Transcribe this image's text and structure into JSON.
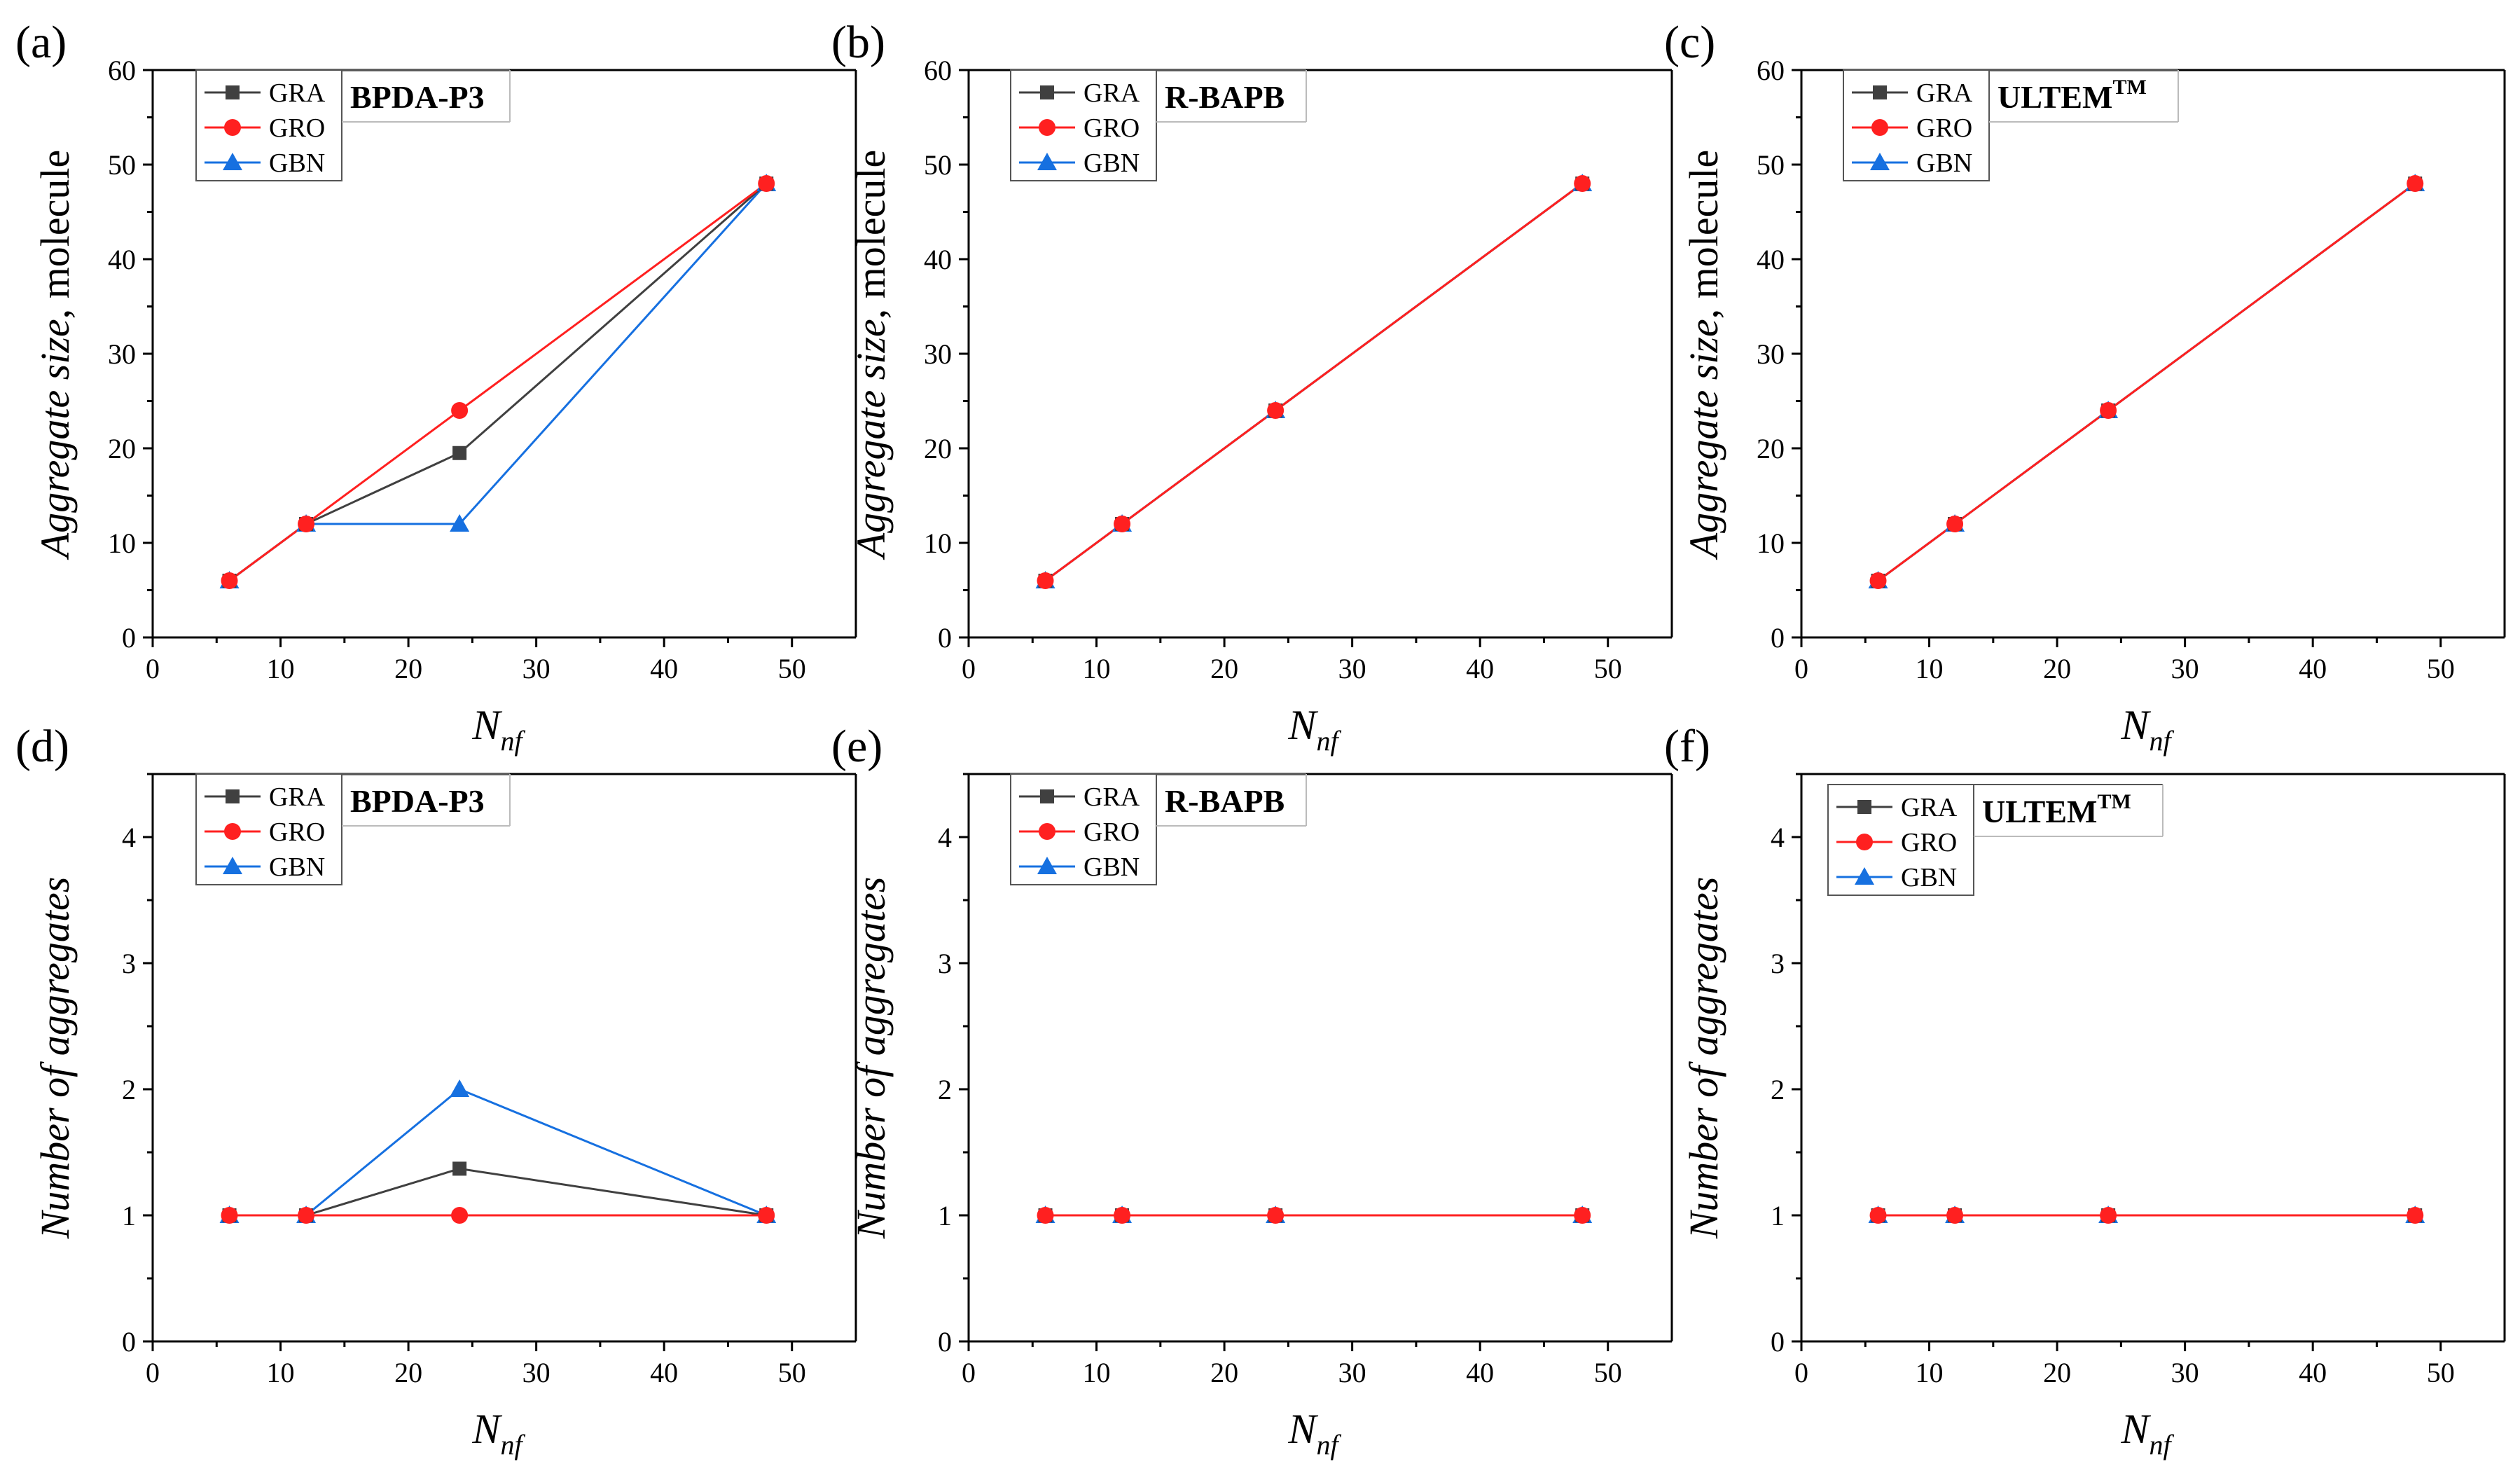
{
  "colors": {
    "GRA": "#404040",
    "GRO": "#ff2020",
    "GBN": "#1670e0"
  },
  "chart_data": [
    {
      "id": "a",
      "panel_label": "(a)",
      "type": "line",
      "sample_label": "BPDA-P3",
      "sample_sup": "",
      "xlabel": "N",
      "xlabel_sub": "nf",
      "ylabel_italic": "Aggregate size",
      "ylabel_rest": ", molecule",
      "xlim": [
        0,
        55
      ],
      "ylim": [
        0,
        60
      ],
      "xticks": [
        "0",
        "10",
        "20",
        "30",
        "40",
        "50"
      ],
      "yticks": [
        "0",
        "10",
        "20",
        "30",
        "40",
        "50",
        "60"
      ],
      "x": [
        6,
        12,
        24,
        48
      ],
      "series": [
        {
          "name": "GRA",
          "values": [
            6,
            12,
            19.5,
            48
          ]
        },
        {
          "name": "GRO",
          "values": [
            6,
            12,
            24,
            48
          ]
        },
        {
          "name": "GBN",
          "values": [
            6,
            12,
            12,
            48
          ]
        }
      ]
    },
    {
      "id": "b",
      "panel_label": "(b)",
      "type": "line",
      "sample_label": "R-BAPB",
      "sample_sup": "",
      "xlabel": "N",
      "xlabel_sub": "nf",
      "ylabel_italic": "Aggregate size",
      "ylabel_rest": ", molecule",
      "xlim": [
        0,
        55
      ],
      "ylim": [
        0,
        60
      ],
      "xticks": [
        "0",
        "10",
        "20",
        "30",
        "40",
        "50"
      ],
      "yticks": [
        "0",
        "10",
        "20",
        "30",
        "40",
        "50",
        "60"
      ],
      "x": [
        6,
        12,
        24,
        48
      ],
      "series": [
        {
          "name": "GRA",
          "values": [
            6,
            12,
            24,
            48
          ]
        },
        {
          "name": "GRO",
          "values": [
            6,
            12,
            24,
            48
          ]
        },
        {
          "name": "GBN",
          "values": [
            6,
            12,
            24,
            48
          ]
        }
      ]
    },
    {
      "id": "c",
      "panel_label": "(c)",
      "type": "line",
      "sample_label": "ULTEM",
      "sample_sup": "TM",
      "xlabel": "N",
      "xlabel_sub": "nf",
      "ylabel_italic": "Aggregate size",
      "ylabel_rest": ", molecule",
      "xlim": [
        0,
        55
      ],
      "ylim": [
        0,
        60
      ],
      "xticks": [
        "0",
        "10",
        "20",
        "30",
        "40",
        "50"
      ],
      "yticks": [
        "0",
        "10",
        "20",
        "30",
        "40",
        "50",
        "60"
      ],
      "x": [
        6,
        12,
        24,
        48
      ],
      "series": [
        {
          "name": "GRA",
          "values": [
            6,
            12,
            24,
            48
          ]
        },
        {
          "name": "GRO",
          "values": [
            6,
            12,
            24,
            48
          ]
        },
        {
          "name": "GBN",
          "values": [
            6,
            12,
            24,
            48
          ]
        }
      ]
    },
    {
      "id": "d",
      "panel_label": "(d)",
      "type": "line",
      "sample_label": "BPDA-P3",
      "sample_sup": "",
      "xlabel": "N",
      "xlabel_sub": "nf",
      "ylabel_italic": "Number of aggregates",
      "ylabel_rest": "",
      "xlim": [
        0,
        55
      ],
      "ylim": [
        0,
        4.5
      ],
      "xticks": [
        "0",
        "10",
        "20",
        "30",
        "40",
        "50"
      ],
      "yticks": [
        "0",
        "1",
        "2",
        "3",
        "4"
      ],
      "x": [
        6,
        12,
        24,
        48
      ],
      "series": [
        {
          "name": "GRA",
          "values": [
            1,
            1,
            1.37,
            1
          ]
        },
        {
          "name": "GRO",
          "values": [
            1,
            1,
            1,
            1
          ]
        },
        {
          "name": "GBN",
          "values": [
            1,
            1,
            2,
            1
          ]
        }
      ]
    },
    {
      "id": "e",
      "panel_label": "(e)",
      "type": "line",
      "sample_label": "R-BAPB",
      "sample_sup": "",
      "xlabel": "N",
      "xlabel_sub": "nf",
      "ylabel_italic": "Number of aggregates",
      "ylabel_rest": "",
      "xlim": [
        0,
        55
      ],
      "ylim": [
        0,
        4.5
      ],
      "xticks": [
        "0",
        "10",
        "20",
        "30",
        "40",
        "50"
      ],
      "yticks": [
        "0",
        "1",
        "2",
        "3",
        "4"
      ],
      "x": [
        6,
        12,
        24,
        48
      ],
      "series": [
        {
          "name": "GRA",
          "values": [
            1,
            1,
            1,
            1
          ]
        },
        {
          "name": "GRO",
          "values": [
            1,
            1,
            1,
            1
          ]
        },
        {
          "name": "GBN",
          "values": [
            1,
            1,
            1,
            1
          ]
        }
      ]
    },
    {
      "id": "f",
      "panel_label": "(f)",
      "type": "line",
      "sample_label": "ULTEM",
      "sample_sup": "TM",
      "xlabel": "N",
      "xlabel_sub": "nf",
      "ylabel_italic": "Number of aggregates",
      "ylabel_rest": "",
      "xlim": [
        0,
        55
      ],
      "ylim": [
        0,
        4.5
      ],
      "xticks": [
        "0",
        "10",
        "20",
        "30",
        "40",
        "50"
      ],
      "yticks": [
        "0",
        "1",
        "2",
        "3",
        "4"
      ],
      "x": [
        6,
        12,
        24,
        48
      ],
      "series": [
        {
          "name": "GRA",
          "values": [
            1,
            1,
            1,
            1
          ]
        },
        {
          "name": "GRO",
          "values": [
            1,
            1,
            1,
            1
          ]
        },
        {
          "name": "GBN",
          "values": [
            1,
            1,
            1,
            1
          ]
        }
      ]
    }
  ]
}
